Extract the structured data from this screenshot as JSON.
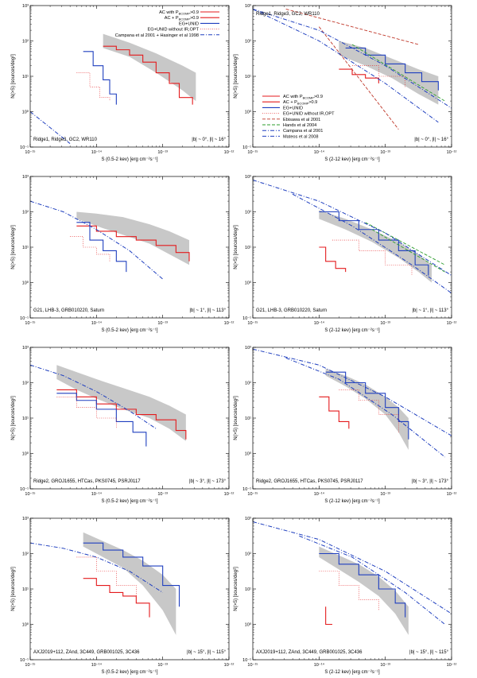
{
  "figure": {
    "ylabel": "N(>S) [sources/deg²]",
    "ytick_labels": [
      "10⁻¹",
      "10⁰",
      "10¹",
      "10²",
      "10³"
    ],
    "xtick_labels": [
      "10⁻¹⁵",
      "10⁻¹⁴",
      "10⁻¹³",
      "10⁻¹²"
    ],
    "xlabel_soft": "S (0.5-2 kev) [erg cm⁻²s⁻¹]",
    "xlabel_hard": "S (2-12 kev) [erg cm⁻²s⁻¹]"
  },
  "legends": {
    "soft": [
      "AC with P_{BCOMP}>0.9",
      "AC + P_{BCOMP}>0.9",
      "EG+UNID",
      "EG+UNID without IR,OPT",
      "Campana et al 2001 + Hasinger et al 1998"
    ],
    "hard": [
      "AC with P_{BCOMP}>0.9",
      "AC + P_{BCOMP}>0.9",
      "EG+UNID",
      "EG+UNID without IR,OPT",
      "Ebisawa et al 2001",
      "Hands et al 2004",
      "Campana et al 2001",
      "Mateos et al 2008"
    ]
  },
  "colors": {
    "ac": "#e41a1c",
    "eg": "#1f3fbf",
    "model": "#1f3fbf",
    "ebisawa": "#c0392b",
    "hands": "#2e9d2e",
    "band": "#c8c8c8"
  },
  "chart_data": [
    {
      "type": "line",
      "band": "soft",
      "region": "Ridge1, Ridge3, GC2, WR110",
      "coords": "|b| ~ 0°, |l| ~ 16°",
      "xlim": [
        -15,
        -12
      ],
      "ylim": [
        -1,
        3
      ],
      "xscale": "log10",
      "yscale": "log10",
      "series": [
        {
          "name": "AC with P_{BCOMP}>0.9",
          "style": "ac",
          "x": [
            -13.9,
            -13.7,
            -13.5,
            -13.3,
            -13.1,
            -12.9,
            -12.75,
            -12.55
          ],
          "y": [
            1.85,
            1.75,
            1.6,
            1.4,
            1.1,
            0.8,
            0.4,
            0.2
          ]
        },
        {
          "name": "EG+UNID",
          "style": "eg",
          "x": [
            -14.2,
            -14.05,
            -13.9,
            -13.8,
            -13.7
          ],
          "y": [
            1.7,
            1.3,
            0.9,
            0.5,
            0.2
          ]
        },
        {
          "name": "EG+UNID without IR,OPT",
          "style": "dot_eg",
          "x": [
            -14.3,
            -14.1,
            -13.95,
            -13.8
          ],
          "y": [
            1.1,
            0.7,
            0.4,
            0.3
          ]
        },
        {
          "name": "Campana et al 2001 + Hasinger et al 1998",
          "style": "model",
          "x": [
            -15,
            -14.4
          ],
          "y": [
            0.0,
            -0.9
          ]
        }
      ],
      "shade": {
        "x": [
          -13.9,
          -13.5,
          -13.1,
          -12.7,
          -12.5
        ],
        "upper": [
          2.2,
          1.95,
          1.65,
          1.3,
          1.1
        ],
        "lower": [
          1.8,
          1.55,
          1.1,
          0.6,
          0.3
        ]
      }
    },
    {
      "type": "line",
      "band": "hard",
      "region": "Ridge1, Ridge3, GC2, WR110",
      "coords": "|b| ~ 0°, |l| ~ 16°",
      "xlim": [
        -15,
        -12
      ],
      "ylim": [
        -1,
        3
      ],
      "xscale": "log10",
      "yscale": "log10",
      "series": [
        {
          "name": "AC with P_{BCOMP}>0.9",
          "style": "ac",
          "x": [
            -13.7,
            -13.5,
            -13.3,
            -13.1
          ],
          "y": [
            1.2,
            1.05,
            0.95,
            0.8
          ]
        },
        {
          "name": "EG+UNID",
          "style": "eg",
          "x": [
            -13.6,
            -13.3,
            -13.0,
            -12.7,
            -12.45,
            -12.2
          ],
          "y": [
            1.8,
            1.6,
            1.35,
            1.1,
            0.85,
            0.6
          ]
        },
        {
          "name": "EG+UNID without IR,OPT",
          "style": "dot_eg",
          "x": [
            -13.5,
            -13.1,
            -12.7
          ],
          "y": [
            1.3,
            1.0,
            0.7
          ]
        },
        {
          "name": "Ebisawa et al 2001 (a)",
          "style": "ebisawa",
          "x": [
            -14.5,
            -12.5
          ],
          "y": [
            2.9,
            1.9
          ]
        },
        {
          "name": "Ebisawa et al 2001 (b)",
          "style": "ebisawa",
          "x": [
            -14.0,
            -12.8
          ],
          "y": [
            2.4,
            -0.5
          ]
        },
        {
          "name": "Hands et al 2004",
          "style": "hands",
          "x": [
            -13.5,
            -12.1
          ],
          "y": [
            1.9,
            0.3
          ]
        },
        {
          "name": "Campana et al 2001",
          "style": "model",
          "x": [
            -15,
            -14,
            -13,
            -12
          ],
          "y": [
            2.9,
            2.3,
            1.3,
            0.1
          ]
        },
        {
          "name": "Mateos et al 2008",
          "style": "model",
          "x": [
            -15,
            -14,
            -13,
            -12.2
          ],
          "y": [
            2.9,
            2.0,
            0.8,
            -0.3
          ]
        }
      ],
      "shade": {
        "x": [
          -13.7,
          -13.3,
          -12.9,
          -12.5,
          -12.2
        ],
        "upper": [
          2.0,
          1.8,
          1.5,
          1.2,
          1.0
        ],
        "lower": [
          1.6,
          1.3,
          0.95,
          0.5,
          0.2
        ]
      }
    },
    {
      "type": "line",
      "band": "soft",
      "region": "G21, LHB-3, GRB010220, Saturn",
      "coords": "|b| ~ 1°, |l| ~ 113°",
      "xlim": [
        -15,
        -12
      ],
      "ylim": [
        -1,
        3
      ],
      "xscale": "log10",
      "yscale": "log10",
      "series": [
        {
          "name": "AC with P_{BCOMP}>0.9",
          "style": "ac",
          "x": [
            -14.3,
            -14.0,
            -13.7,
            -13.4,
            -13.1,
            -12.8,
            -12.6
          ],
          "y": [
            1.6,
            1.45,
            1.3,
            1.2,
            1.05,
            0.85,
            0.6
          ]
        },
        {
          "name": "EG+UNID",
          "style": "eg",
          "x": [
            -14.3,
            -14.1,
            -13.9,
            -13.7,
            -13.55
          ],
          "y": [
            1.7,
            1.2,
            0.9,
            0.6,
            0.3
          ]
        },
        {
          "name": "EG+UNID without IR,OPT",
          "style": "dot_eg",
          "x": [
            -14.4,
            -14.2,
            -14.0,
            -13.8
          ],
          "y": [
            1.3,
            1.0,
            0.8,
            0.6
          ]
        },
        {
          "name": "Campana et al 2001 + Hasinger et al 1998",
          "style": "model",
          "x": [
            -15,
            -14.5,
            -14.0,
            -13.5,
            -13.0
          ],
          "y": [
            2.3,
            2.0,
            1.5,
            0.9,
            0.1
          ]
        }
      ],
      "shade": {
        "x": [
          -14.3,
          -14.0,
          -13.6,
          -13.2,
          -12.9,
          -12.6
        ],
        "upper": [
          2.0,
          1.95,
          1.85,
          1.65,
          1.45,
          1.2
        ],
        "lower": [
          1.8,
          1.6,
          1.35,
          1.1,
          0.8,
          0.5
        ]
      }
    },
    {
      "type": "line",
      "band": "hard",
      "region": "G21, LHB-3, GRB010220, Saturn",
      "coords": "|b| ~ 1°, |l| ~ 113°",
      "xlim": [
        -15,
        -12
      ],
      "ylim": [
        -1,
        3
      ],
      "xscale": "log10",
      "yscale": "log10",
      "series": [
        {
          "name": "AC with P_{BCOMP}>0.9",
          "style": "ac",
          "x": [
            -14.0,
            -13.9,
            -13.75,
            -13.6
          ],
          "y": [
            1.0,
            0.6,
            0.4,
            0.3
          ]
        },
        {
          "name": "EG+UNID",
          "style": "eg",
          "x": [
            -14.0,
            -13.7,
            -13.4,
            -13.1,
            -12.8,
            -12.55,
            -12.35
          ],
          "y": [
            2.0,
            1.75,
            1.5,
            1.2,
            0.9,
            0.5,
            0.2
          ]
        },
        {
          "name": "EG+UNID without IR,OPT",
          "style": "dot_eg",
          "x": [
            -13.8,
            -13.4,
            -13.0,
            -12.6
          ],
          "y": [
            1.2,
            0.9,
            0.5,
            0.2
          ]
        },
        {
          "name": "Ebisawa et al 2001",
          "style": "hands",
          "x": [
            -13.3,
            -12.1
          ],
          "y": [
            1.7,
            0.5
          ]
        },
        {
          "name": "Hands et al 2004",
          "style": "hands",
          "x": [
            -13.2,
            -12.1
          ],
          "y": [
            1.5,
            0.3
          ]
        },
        {
          "name": "Campana et al 2001",
          "style": "model",
          "x": [
            -15,
            -14,
            -13,
            -12
          ],
          "y": [
            2.9,
            2.3,
            1.4,
            0.2
          ]
        },
        {
          "name": "Mateos et al 2008",
          "style": "model",
          "x": [
            -14.4,
            -13.5,
            -12.6,
            -12.0
          ],
          "y": [
            2.5,
            1.6,
            0.5,
            -0.3
          ]
        }
      ],
      "shade": {
        "x": [
          -14.0,
          -13.6,
          -13.2,
          -12.8,
          -12.5,
          -12.3
        ],
        "upper": [
          2.05,
          1.8,
          1.5,
          1.15,
          0.8,
          0.5
        ],
        "lower": [
          1.8,
          1.5,
          1.15,
          0.7,
          0.3,
          0.0
        ]
      }
    },
    {
      "type": "line",
      "band": "soft",
      "region": "Ridge2, GROJ1655, HTCas, PKS0745, PSRJ0117",
      "coords": "|b| ~ 3°, |l| ~ 173°",
      "xlim": [
        -15,
        -12
      ],
      "ylim": [
        -1,
        3
      ],
      "xscale": "log10",
      "yscale": "log10",
      "series": [
        {
          "name": "AC with P_{BCOMP}>0.9",
          "style": "ac",
          "x": [
            -14.6,
            -14.3,
            -14.0,
            -13.7,
            -13.4,
            -13.1,
            -12.8,
            -12.65
          ],
          "y": [
            1.8,
            1.6,
            1.4,
            1.25,
            1.1,
            0.95,
            0.65,
            0.4
          ]
        },
        {
          "name": "EG+UNID",
          "style": "eg",
          "x": [
            -14.6,
            -14.3,
            -14.0,
            -13.7,
            -13.45,
            -13.25
          ],
          "y": [
            1.7,
            1.5,
            1.25,
            0.9,
            0.6,
            0.2
          ]
        },
        {
          "name": "EG+UNID without IR,OPT",
          "style": "dot_eg",
          "x": [
            -14.6,
            -14.3,
            -14.0,
            -13.7
          ],
          "y": [
            1.6,
            1.3,
            1.0,
            0.7
          ]
        },
        {
          "name": "Campana et al 2001 + Hasinger et al 1998",
          "style": "model",
          "x": [
            -15,
            -14.5,
            -14.0,
            -13.5,
            -13.1
          ],
          "y": [
            2.5,
            2.2,
            1.75,
            1.2,
            0.7
          ]
        }
      ],
      "shade": {
        "x": [
          -14.6,
          -14.3,
          -14.0,
          -13.6,
          -13.2,
          -12.9,
          -12.65
        ],
        "upper": [
          2.5,
          2.3,
          2.1,
          1.85,
          1.6,
          1.35,
          1.1
        ],
        "lower": [
          2.1,
          1.8,
          1.55,
          1.25,
          1.0,
          0.7,
          0.35
        ]
      }
    },
    {
      "type": "line",
      "band": "hard",
      "region": "Ridge2, GROJ1655, HTCas, PKS0745, PSRJ0117",
      "coords": "|b| ~ 3°, |l| ~ 173°",
      "xlim": [
        -15,
        -12
      ],
      "ylim": [
        -1,
        3
      ],
      "xscale": "log10",
      "yscale": "log10",
      "series": [
        {
          "name": "AC with P_{BCOMP}>0.9",
          "style": "ac",
          "x": [
            -14.0,
            -13.85,
            -13.7,
            -13.55
          ],
          "y": [
            1.6,
            1.2,
            0.9,
            0.7
          ]
        },
        {
          "name": "EG+UNID",
          "style": "eg",
          "x": [
            -13.9,
            -13.6,
            -13.3,
            -13.0,
            -12.8,
            -12.65
          ],
          "y": [
            2.3,
            2.0,
            1.7,
            1.3,
            0.9,
            0.4
          ]
        },
        {
          "name": "EG+UNID without IR,OPT",
          "style": "dot_eg",
          "x": [
            -13.7,
            -13.4,
            -13.1,
            -12.8
          ],
          "y": [
            1.8,
            1.5,
            1.1,
            0.6
          ]
        },
        {
          "name": "Campana et al 2001",
          "style": "model",
          "x": [
            -15,
            -14,
            -13,
            -12
          ],
          "y": [
            2.95,
            2.5,
            1.6,
            0.5
          ]
        },
        {
          "name": "Mateos et al 2008",
          "style": "model",
          "x": [
            -14.5,
            -13.7,
            -12.9,
            -12.1
          ],
          "y": [
            2.7,
            2.1,
            1.1,
            -0.1
          ]
        }
      ],
      "shade": {
        "x": [
          -13.9,
          -13.6,
          -13.3,
          -13.0,
          -12.8,
          -12.65
        ],
        "upper": [
          2.4,
          2.2,
          1.95,
          1.6,
          1.3,
          1.0
        ],
        "lower": [
          2.2,
          1.9,
          1.55,
          1.1,
          0.6,
          0.1
        ]
      }
    },
    {
      "type": "line",
      "band": "soft",
      "region": "AXJ2019+112, ZAnd, 3C449, GRB001025, 3C436",
      "coords": "|b| ~ 15°, |l| ~ 115°",
      "xlim": [
        -15,
        -12
      ],
      "ylim": [
        -1,
        3
      ],
      "xscale": "log10",
      "yscale": "log10",
      "series": [
        {
          "name": "AC with P_{BCOMP}>0.9",
          "style": "ac",
          "x": [
            -14.2,
            -14.0,
            -13.8,
            -13.6,
            -13.4,
            -13.2
          ],
          "y": [
            1.3,
            1.1,
            0.9,
            0.8,
            0.6,
            0.2
          ]
        },
        {
          "name": "EG+UNID",
          "style": "eg",
          "x": [
            -14.2,
            -13.9,
            -13.6,
            -13.3,
            -13.0,
            -12.75
          ],
          "y": [
            2.3,
            2.1,
            1.9,
            1.65,
            1.1,
            0.5
          ]
        },
        {
          "name": "EG+UNID without IR,OPT",
          "style": "dot_eg",
          "x": [
            -14.3,
            -14.0,
            -13.7,
            -13.4
          ],
          "y": [
            1.9,
            1.5,
            1.1,
            0.8
          ]
        },
        {
          "name": "Campana et al 2001 + Hasinger et al 1998",
          "style": "model",
          "x": [
            -15,
            -14.5,
            -14.0,
            -13.5,
            -13.0
          ],
          "y": [
            2.3,
            2.15,
            1.9,
            1.5,
            0.9
          ]
        }
      ],
      "shade": {
        "x": [
          -14.2,
          -13.9,
          -13.6,
          -13.3,
          -13.0,
          -12.8
        ],
        "upper": [
          2.6,
          2.35,
          2.1,
          1.8,
          1.4,
          1.0
        ],
        "lower": [
          2.2,
          1.9,
          1.6,
          1.1,
          0.4,
          -0.3
        ]
      }
    },
    {
      "type": "line",
      "band": "hard",
      "region": "AXJ2019+112, ZAnd, 3C449, GRB001025, 3C436",
      "coords": "|b| ~ 15°, |l| ~ 115°",
      "xlim": [
        -15,
        -12
      ],
      "ylim": [
        -1,
        3
      ],
      "xscale": "log10",
      "yscale": "log10",
      "series": [
        {
          "name": "AC with P_{BCOMP}>0.9",
          "style": "ac",
          "x": [
            -13.9,
            -13.9,
            -13.8
          ],
          "y": [
            0.5,
            0.0,
            0.0
          ]
        },
        {
          "name": "EG+UNID",
          "style": "eg",
          "x": [
            -14.0,
            -13.7,
            -13.4,
            -13.1,
            -12.85,
            -12.7
          ],
          "y": [
            2.0,
            1.7,
            1.4,
            1.0,
            0.6,
            0.2
          ]
        },
        {
          "name": "EG+UNID without IR,OPT",
          "style": "dot_eg",
          "x": [
            -14.0,
            -13.7,
            -13.4,
            -13.1
          ],
          "y": [
            1.5,
            1.1,
            0.7,
            0.4
          ]
        },
        {
          "name": "Campana et al 2001",
          "style": "model",
          "x": [
            -15,
            -14,
            -13,
            -12
          ],
          "y": [
            2.9,
            2.4,
            1.5,
            0.3
          ]
        },
        {
          "name": "Mateos et al 2008",
          "style": "model",
          "x": [
            -14.3,
            -13.5,
            -12.7,
            -12.1
          ],
          "y": [
            2.5,
            1.9,
            0.9,
            0.0
          ]
        }
      ],
      "shade": {
        "x": [
          -14.0,
          -13.7,
          -13.4,
          -13.1,
          -12.85,
          -12.65
        ],
        "upper": [
          2.2,
          1.95,
          1.7,
          1.35,
          0.95,
          0.5
        ],
        "lower": [
          1.9,
          1.55,
          1.2,
          0.8,
          0.3,
          -0.3
        ]
      }
    }
  ]
}
